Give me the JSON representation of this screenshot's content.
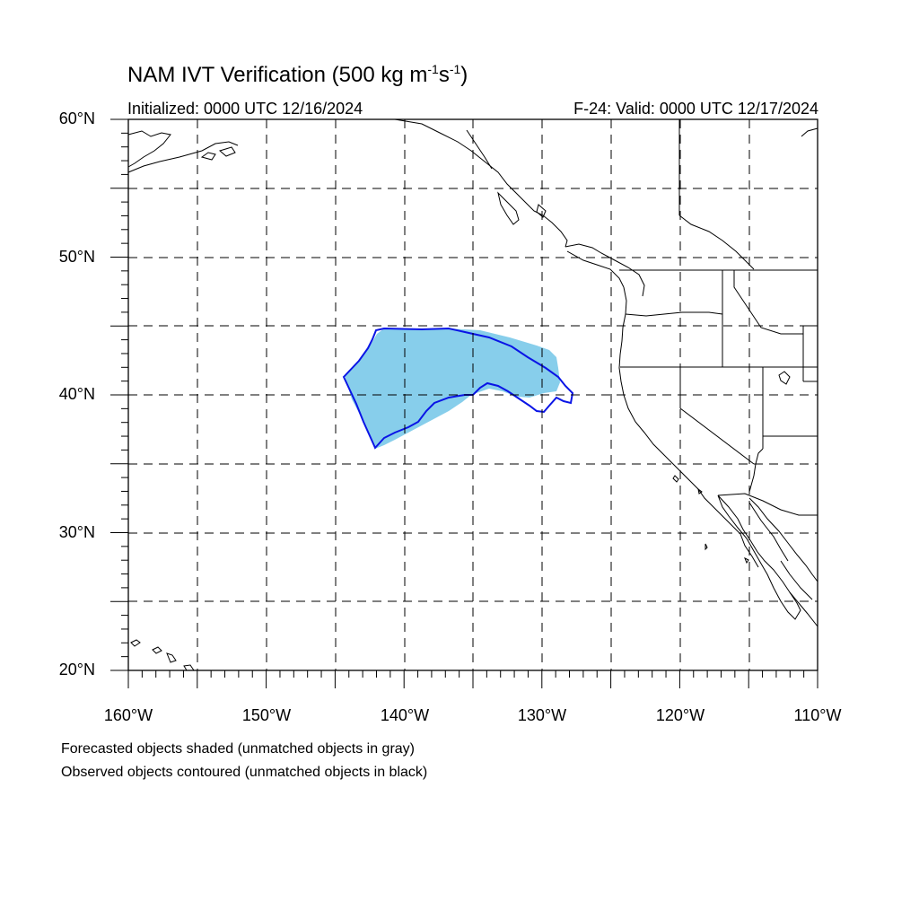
{
  "title": {
    "prefix": "NAM IVT Verification (500 kg m",
    "exp1": "-1",
    "mid": "s",
    "exp2": "-1",
    "suffix": ")"
  },
  "initialized": "Initialized: 0000 UTC 12/16/2024",
  "valid": "F-24: Valid: 0000 UTC 12/17/2024",
  "lat_labels": [
    "60°N",
    "50°N",
    "40°N",
    "30°N",
    "20°N"
  ],
  "lon_labels": [
    "160°W",
    "150°W",
    "140°W",
    "130°W",
    "120°W",
    "110°W"
  ],
  "legend": {
    "forecast": "Forecasted objects shaded (unmatched objects in gray)",
    "observed": "Observed objects contoured (unmatched objects in black)"
  },
  "colors": {
    "forecast_fill": "#87ceeb",
    "observed_contour": "#0a14e6",
    "coastline": "#000000",
    "grid": "#000000"
  },
  "map_extent": {
    "lon": [
      -160,
      -110
    ],
    "lat": [
      20,
      60
    ]
  }
}
